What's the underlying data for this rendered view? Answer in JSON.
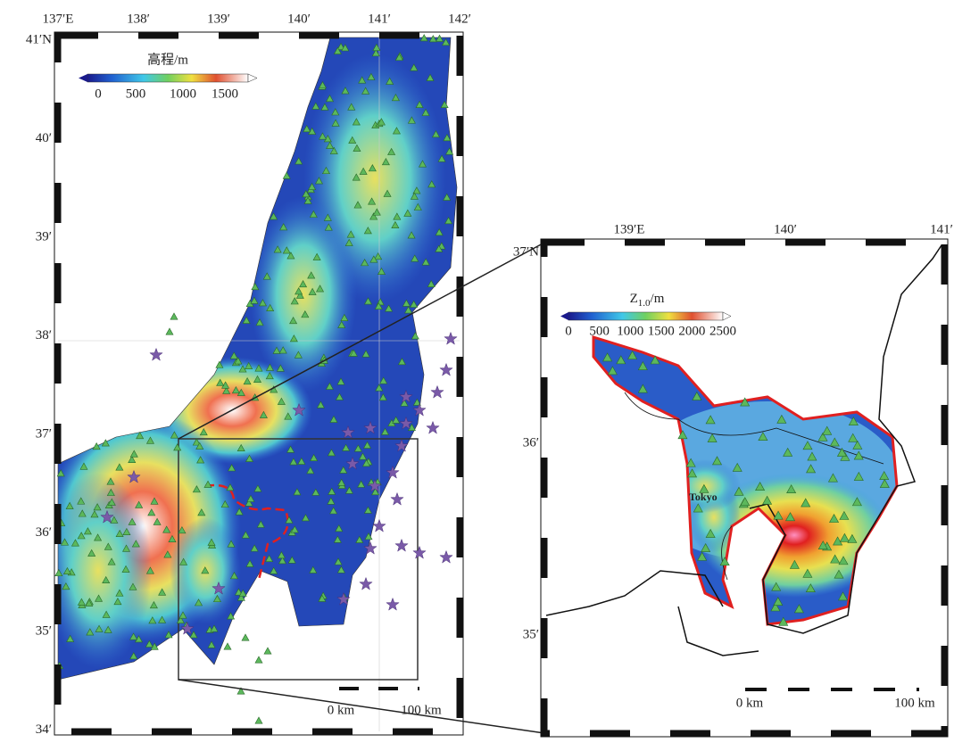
{
  "left_map": {
    "lon_labels": [
      "137′E",
      "138′",
      "139′",
      "140′",
      "141′",
      "142′"
    ],
    "lat_labels": [
      "41′N",
      "40′",
      "39′",
      "38′",
      "37′",
      "36′",
      "35′",
      "34′"
    ],
    "colorbar": {
      "title": "高程/m",
      "labels": [
        "0",
        "500",
        "1000",
        "1500"
      ]
    },
    "scale_bar": [
      "0 km",
      "100 km"
    ]
  },
  "right_map": {
    "lon_labels": [
      "139′E",
      "140′",
      "141′"
    ],
    "lat_labels": [
      "37′N",
      "36′",
      "35′"
    ],
    "colorbar": {
      "symbol": "Z",
      "subscript": "1.0",
      "unit": "/m",
      "labels": [
        "0",
        "500",
        "1000",
        "1500",
        "2000",
        "2500"
      ]
    },
    "place_label": "Tokyo",
    "scale_bar": [
      "0 km",
      "100 km"
    ]
  }
}
